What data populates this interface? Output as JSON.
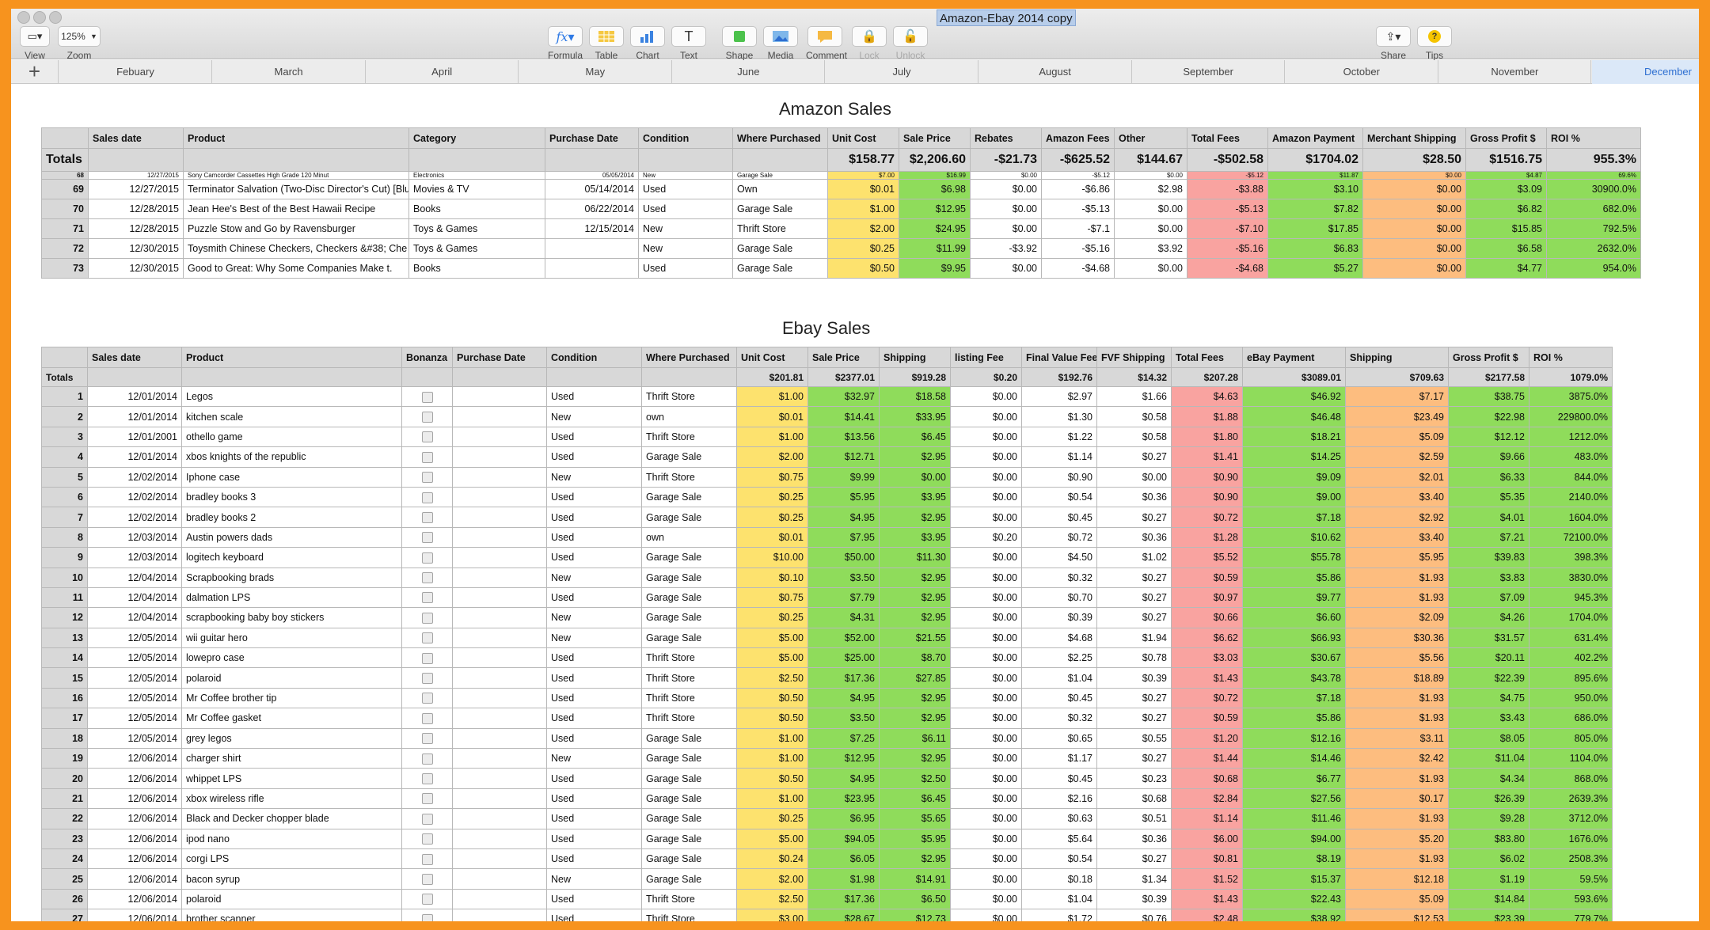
{
  "window": {
    "title": "Amazon-Ebay 2014 copy"
  },
  "toolbar": {
    "view_label": "View",
    "zoom_value": "125%",
    "zoom_label": "Zoom",
    "formula_label": "Formula",
    "table_label": "Table",
    "chart_label": "Chart",
    "text_label": "Text",
    "shape_label": "Shape",
    "media_label": "Media",
    "comment_label": "Comment",
    "lock_label": "Lock",
    "unlock_label": "Unlock",
    "share_label": "Share",
    "tips_label": "Tips"
  },
  "sheets": [
    "Febuary",
    "March",
    "April",
    "May",
    "June",
    "July",
    "August",
    "September",
    "October",
    "November",
    "December"
  ],
  "active_sheet": "December",
  "amazon": {
    "title": "Amazon Sales",
    "headers": [
      "",
      "Sales date",
      "Product",
      "Category",
      "Purchase Date",
      "Condition",
      "Where Purchased",
      "Unit Cost",
      "Sale Price",
      "Rebates",
      "Amazon Fees",
      "Other",
      "Total Fees",
      "Amazon Payment",
      "Merchant Shipping",
      "Gross Profit $",
      "ROI %"
    ],
    "totals": {
      "label": "Totals",
      "unit_cost": "$158.77",
      "sale_price": "$2,206.60",
      "rebates": "-$21.73",
      "amazon_fees": "-$625.52",
      "other": "$144.67",
      "total_fees": "-$502.58",
      "amazon_payment": "$1704.02",
      "merchant_shipping": "$28.50",
      "gross_profit": "$1516.75",
      "roi": "955.3%"
    },
    "clipped_row": [
      "68",
      "12/27/2015",
      "Sony Camcorder Cassettes High Grade 120 Minut",
      "Electronics",
      "05/05/2014",
      "New",
      "Garage Sale",
      "$7.00",
      "$16.99",
      "$0.00",
      "-$5.12",
      "$0.00",
      "-$5.12",
      "$11.87",
      "$0.00",
      "$4.87",
      "69.6%"
    ],
    "rows": [
      [
        "69",
        "12/27/2015",
        "Terminator Salvation (Two-Disc Director's Cut) [Blu",
        "Movies & TV",
        "05/14/2014",
        "Used",
        "Own",
        "$0.01",
        "$6.98",
        "$0.00",
        "-$6.86",
        "$2.98",
        "-$3.88",
        "$3.10",
        "$0.00",
        "$3.09",
        "30900.0%"
      ],
      [
        "70",
        "12/28/2015",
        "Jean Hee's Best of the Best Hawaii Recipe",
        "Books",
        "06/22/2014",
        "Used",
        "Garage Sale",
        "$1.00",
        "$12.95",
        "$0.00",
        "-$5.13",
        "$0.00",
        "-$5.13",
        "$7.82",
        "$0.00",
        "$6.82",
        "682.0%"
      ],
      [
        "71",
        "12/28/2015",
        "Puzzle Stow and Go by Ravensburger",
        "Toys & Games",
        "12/15/2014",
        "New",
        "Thrift Store",
        "$2.00",
        "$24.95",
        "$0.00",
        "-$7.1",
        "$0.00",
        "-$7.10",
        "$17.85",
        "$0.00",
        "$15.85",
        "792.5%"
      ],
      [
        "72",
        "12/30/2015",
        "Toysmith Chinese Checkers, Checkers &#38; Che",
        "Toys & Games",
        "",
        "New",
        "Garage Sale",
        "$0.25",
        "$11.99",
        "-$3.92",
        "-$5.16",
        "$3.92",
        "-$5.16",
        "$6.83",
        "$0.00",
        "$6.58",
        "2632.0%"
      ],
      [
        "73",
        "12/30/2015",
        "Good to Great: Why Some Companies Make t.",
        "Books",
        "",
        "Used",
        "Garage Sale",
        "$0.50",
        "$9.95",
        "$0.00",
        "-$4.68",
        "$0.00",
        "-$4.68",
        "$5.27",
        "$0.00",
        "$4.77",
        "954.0%"
      ]
    ]
  },
  "ebay": {
    "title": "Ebay Sales",
    "headers": [
      "",
      "Sales date",
      "Product",
      "Bonanza",
      "Purchase Date",
      "Condition",
      "Where Purchased",
      "Unit Cost",
      "Sale Price",
      "Shipping",
      "listing Fee",
      "Final Value Fee",
      "FVF Shipping",
      "Total Fees",
      "eBay Payment",
      "Shipping",
      "Gross Profit $",
      "ROI %"
    ],
    "totals": {
      "label": "Totals",
      "unit_cost": "$201.81",
      "sale_price": "$2377.01",
      "shipping": "$919.28",
      "listing_fee": "$0.20",
      "final_value_fee": "$192.76",
      "fvf_shipping": "$14.32",
      "total_fees": "$207.28",
      "ebay_payment": "$3089.01",
      "shipping_out": "$709.63",
      "gross_profit": "$2177.58",
      "roi": "1079.0%"
    },
    "rows": [
      [
        "1",
        "12/01/2014",
        "Legos",
        "Used",
        "Thrift Store",
        "$1.00",
        "$32.97",
        "$18.58",
        "$0.00",
        "$2.97",
        "$1.66",
        "$4.63",
        "$46.92",
        "$7.17",
        "$38.75",
        "3875.0%"
      ],
      [
        "2",
        "12/01/2014",
        "kitchen scale",
        "New",
        "own",
        "$0.01",
        "$14.41",
        "$33.95",
        "$0.00",
        "$1.30",
        "$0.58",
        "$1.88",
        "$46.48",
        "$23.49",
        "$22.98",
        "229800.0%"
      ],
      [
        "3",
        "12/01/2001",
        "othello game",
        "Used",
        "Thrift Store",
        "$1.00",
        "$13.56",
        "$6.45",
        "$0.00",
        "$1.22",
        "$0.58",
        "$1.80",
        "$18.21",
        "$5.09",
        "$12.12",
        "1212.0%"
      ],
      [
        "4",
        "12/01/2014",
        "xbos knights of the republic",
        "Used",
        "Garage Sale",
        "$2.00",
        "$12.71",
        "$2.95",
        "$0.00",
        "$1.14",
        "$0.27",
        "$1.41",
        "$14.25",
        "$2.59",
        "$9.66",
        "483.0%"
      ],
      [
        "5",
        "12/02/2014",
        "Iphone case",
        "New",
        "Thrift Store",
        "$0.75",
        "$9.99",
        "$0.00",
        "$0.00",
        "$0.90",
        "$0.00",
        "$0.90",
        "$9.09",
        "$2.01",
        "$6.33",
        "844.0%"
      ],
      [
        "6",
        "12/02/2014",
        "bradley books 3",
        "Used",
        "Garage Sale",
        "$0.25",
        "$5.95",
        "$3.95",
        "$0.00",
        "$0.54",
        "$0.36",
        "$0.90",
        "$9.00",
        "$3.40",
        "$5.35",
        "2140.0%"
      ],
      [
        "7",
        "12/02/2014",
        "bradley books 2",
        "Used",
        "Garage Sale",
        "$0.25",
        "$4.95",
        "$2.95",
        "$0.00",
        "$0.45",
        "$0.27",
        "$0.72",
        "$7.18",
        "$2.92",
        "$4.01",
        "1604.0%"
      ],
      [
        "8",
        "12/03/2014",
        "Austin powers dads",
        "Used",
        "own",
        "$0.01",
        "$7.95",
        "$3.95",
        "$0.20",
        "$0.72",
        "$0.36",
        "$1.28",
        "$10.62",
        "$3.40",
        "$7.21",
        "72100.0%"
      ],
      [
        "9",
        "12/03/2014",
        "logitech keyboard",
        "Used",
        "Garage Sale",
        "$10.00",
        "$50.00",
        "$11.30",
        "$0.00",
        "$4.50",
        "$1.02",
        "$5.52",
        "$55.78",
        "$5.95",
        "$39.83",
        "398.3%"
      ],
      [
        "10",
        "12/04/2014",
        "Scrapbooking brads",
        "New",
        "Garage Sale",
        "$0.10",
        "$3.50",
        "$2.95",
        "$0.00",
        "$0.32",
        "$0.27",
        "$0.59",
        "$5.86",
        "$1.93",
        "$3.83",
        "3830.0%"
      ],
      [
        "11",
        "12/04/2014",
        "dalmation LPS",
        "Used",
        "Garage Sale",
        "$0.75",
        "$7.79",
        "$2.95",
        "$0.00",
        "$0.70",
        "$0.27",
        "$0.97",
        "$9.77",
        "$1.93",
        "$7.09",
        "945.3%"
      ],
      [
        "12",
        "12/04/2014",
        "scrapbooking baby boy stickers",
        "New",
        "Garage Sale",
        "$0.25",
        "$4.31",
        "$2.95",
        "$0.00",
        "$0.39",
        "$0.27",
        "$0.66",
        "$6.60",
        "$2.09",
        "$4.26",
        "1704.0%"
      ],
      [
        "13",
        "12/05/2014",
        "wii guitar hero",
        "New",
        "Garage Sale",
        "$5.00",
        "$52.00",
        "$21.55",
        "$0.00",
        "$4.68",
        "$1.94",
        "$6.62",
        "$66.93",
        "$30.36",
        "$31.57",
        "631.4%"
      ],
      [
        "14",
        "12/05/2014",
        "lowepro case",
        "Used",
        "Thrift Store",
        "$5.00",
        "$25.00",
        "$8.70",
        "$0.00",
        "$2.25",
        "$0.78",
        "$3.03",
        "$30.67",
        "$5.56",
        "$20.11",
        "402.2%"
      ],
      [
        "15",
        "12/05/2014",
        "polaroid",
        "Used",
        "Thrift Store",
        "$2.50",
        "$17.36",
        "$27.85",
        "$0.00",
        "$1.04",
        "$0.39",
        "$1.43",
        "$43.78",
        "$18.89",
        "$22.39",
        "895.6%"
      ],
      [
        "16",
        "12/05/2014",
        "Mr Coffee brother tip",
        "Used",
        "Thrift Store",
        "$0.50",
        "$4.95",
        "$2.95",
        "$0.00",
        "$0.45",
        "$0.27",
        "$0.72",
        "$7.18",
        "$1.93",
        "$4.75",
        "950.0%"
      ],
      [
        "17",
        "12/05/2014",
        "Mr Coffee gasket",
        "Used",
        "Thrift Store",
        "$0.50",
        "$3.50",
        "$2.95",
        "$0.00",
        "$0.32",
        "$0.27",
        "$0.59",
        "$5.86",
        "$1.93",
        "$3.43",
        "686.0%"
      ],
      [
        "18",
        "12/05/2014",
        "grey legos",
        "Used",
        "Garage Sale",
        "$1.00",
        "$7.25",
        "$6.11",
        "$0.00",
        "$0.65",
        "$0.55",
        "$1.20",
        "$12.16",
        "$3.11",
        "$8.05",
        "805.0%"
      ],
      [
        "19",
        "12/06/2014",
        "charger shirt",
        "New",
        "Garage Sale",
        "$1.00",
        "$12.95",
        "$2.95",
        "$0.00",
        "$1.17",
        "$0.27",
        "$1.44",
        "$14.46",
        "$2.42",
        "$11.04",
        "1104.0%"
      ],
      [
        "20",
        "12/06/2014",
        "whippet LPS",
        "Used",
        "Garage Sale",
        "$0.50",
        "$4.95",
        "$2.50",
        "$0.00",
        "$0.45",
        "$0.23",
        "$0.68",
        "$6.77",
        "$1.93",
        "$4.34",
        "868.0%"
      ],
      [
        "21",
        "12/06/2014",
        "xbox wireless rifle",
        "Used",
        "Garage Sale",
        "$1.00",
        "$23.95",
        "$6.45",
        "$0.00",
        "$2.16",
        "$0.68",
        "$2.84",
        "$27.56",
        "$0.17",
        "$26.39",
        "2639.3%"
      ],
      [
        "22",
        "12/06/2014",
        "Black and Decker chopper blade",
        "Used",
        "Garage Sale",
        "$0.25",
        "$6.95",
        "$5.65",
        "$0.00",
        "$0.63",
        "$0.51",
        "$1.14",
        "$11.46",
        "$1.93",
        "$9.28",
        "3712.0%"
      ],
      [
        "23",
        "12/06/2014",
        "ipod nano",
        "Used",
        "Garage Sale",
        "$5.00",
        "$94.05",
        "$5.95",
        "$0.00",
        "$5.64",
        "$0.36",
        "$6.00",
        "$94.00",
        "$5.20",
        "$83.80",
        "1676.0%"
      ],
      [
        "24",
        "12/06/2014",
        "corgi LPS",
        "Used",
        "Garage Sale",
        "$0.24",
        "$6.05",
        "$2.95",
        "$0.00",
        "$0.54",
        "$0.27",
        "$0.81",
        "$8.19",
        "$1.93",
        "$6.02",
        "2508.3%"
      ],
      [
        "25",
        "12/06/2014",
        "bacon syrup",
        "New",
        "Garage Sale",
        "$2.00",
        "$1.98",
        "$14.91",
        "$0.00",
        "$0.18",
        "$1.34",
        "$1.52",
        "$15.37",
        "$12.18",
        "$1.19",
        "59.5%"
      ],
      [
        "26",
        "12/06/2014",
        "polaroid",
        "Used",
        "Thrift Store",
        "$2.50",
        "$17.36",
        "$6.50",
        "$0.00",
        "$1.04",
        "$0.39",
        "$1.43",
        "$22.43",
        "$5.09",
        "$14.84",
        "593.6%"
      ],
      [
        "27",
        "12/06/2014",
        "brother scanner",
        "Used",
        "Thrift Store",
        "$3.00",
        "$28.67",
        "$12.73",
        "$0.00",
        "$1.72",
        "$0.76",
        "$2.48",
        "$38.92",
        "$12.53",
        "$23.39",
        "779.7%"
      ]
    ]
  },
  "colors": {
    "frame": "#f7931e",
    "unit_cost": "#fde26e",
    "positive": "#8fdc5b",
    "fees": "#f9a3a0",
    "shipping": "#fdbd7f",
    "header": "#d8d8d8"
  }
}
